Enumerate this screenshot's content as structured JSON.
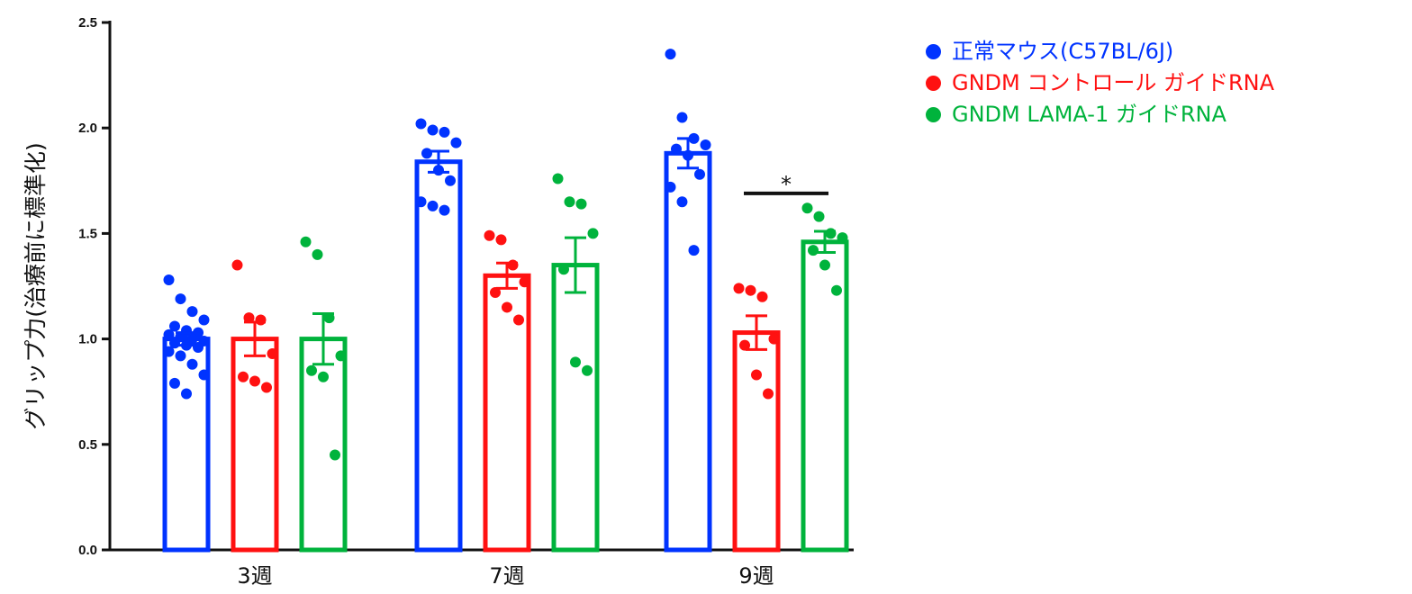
{
  "chart_data": {
    "type": "bar",
    "ylabel": "グリップ力(治療前に標準化)",
    "xlabel": "",
    "ylim": [
      0,
      2.5
    ],
    "yticks": [
      "0.0",
      "0.5",
      "1.0",
      "1.5",
      "2.0",
      "2.5"
    ],
    "grid": false,
    "legend_position": "top-right",
    "categories": [
      "3週",
      "7週",
      "9週"
    ],
    "series": [
      {
        "name": "正常マウス(C57BL/6J)",
        "color": "#0033ff",
        "values": [
          1.0,
          1.84,
          1.88
        ],
        "sem": [
          0.03,
          0.05,
          0.07
        ],
        "points": [
          [
            1.28,
            1.19,
            1.13,
            1.09,
            1.06,
            1.04,
            1.03,
            1.02,
            1.01,
            1.0,
            0.99,
            0.98,
            0.97,
            0.96,
            0.94,
            0.92,
            0.88,
            0.83,
            0.79,
            0.74
          ],
          [
            2.02,
            1.99,
            1.98,
            1.93,
            1.88,
            1.8,
            1.75,
            1.65,
            1.63,
            1.61
          ],
          [
            2.35,
            2.05,
            1.95,
            1.92,
            1.9,
            1.87,
            1.78,
            1.72,
            1.65,
            1.42
          ]
        ]
      },
      {
        "name": "GNDM コントロール ガイドRNA",
        "color": "#ff1111",
        "values": [
          1.0,
          1.3,
          1.03
        ],
        "sem": [
          0.08,
          0.06,
          0.08
        ],
        "points": [
          [
            1.35,
            1.1,
            1.09,
            0.93,
            0.82,
            0.8,
            0.77
          ],
          [
            1.49,
            1.47,
            1.35,
            1.27,
            1.22,
            1.15,
            1.09
          ],
          [
            1.24,
            1.23,
            1.2,
            1.0,
            0.97,
            0.83,
            0.74
          ]
        ]
      },
      {
        "name": "GNDM LAMA-1 ガイドRNA",
        "color": "#00b33c",
        "values": [
          1.0,
          1.35,
          1.46
        ],
        "sem": [
          0.12,
          0.13,
          0.05
        ],
        "points": [
          [
            1.46,
            1.4,
            1.1,
            0.92,
            0.85,
            0.82,
            0.45
          ],
          [
            1.76,
            1.65,
            1.64,
            1.5,
            1.33,
            0.89,
            0.85
          ],
          [
            1.62,
            1.58,
            1.5,
            1.48,
            1.42,
            1.35,
            1.23
          ]
        ]
      }
    ],
    "annotations": [
      {
        "text": "*",
        "category": "9週",
        "between_series": [
          1,
          2
        ],
        "y": 1.69
      }
    ]
  }
}
